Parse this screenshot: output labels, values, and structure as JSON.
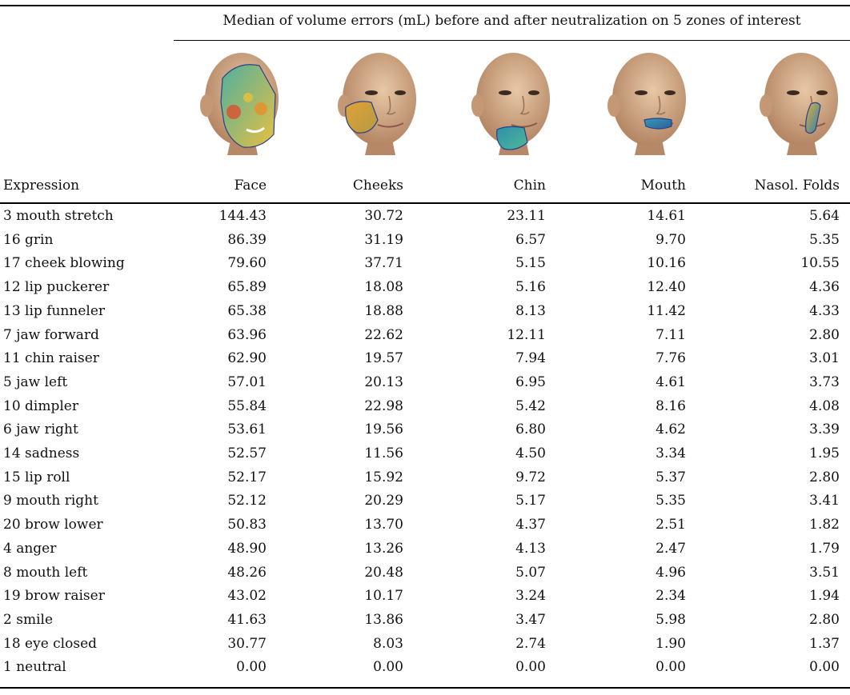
{
  "caption": "Median of volume errors (mL) before and after neutralization on 5 zones of interest",
  "columns": [
    "Expression",
    "Face",
    "Cheeks",
    "Chin",
    "Mouth",
    "Nasol. Folds"
  ],
  "rows": [
    {
      "expression": "3 mouth stretch",
      "values": [
        "144.43",
        "30.72",
        "23.11",
        "14.61",
        "5.64"
      ]
    },
    {
      "expression": "16 grin",
      "values": [
        "86.39",
        "31.19",
        "6.57",
        "9.70",
        "5.35"
      ]
    },
    {
      "expression": "17 cheek blowing",
      "values": [
        "79.60",
        "37.71",
        "5.15",
        "10.16",
        "10.55"
      ]
    },
    {
      "expression": "12 lip puckerer",
      "values": [
        "65.89",
        "18.08",
        "5.16",
        "12.40",
        "4.36"
      ]
    },
    {
      "expression": "13 lip funneler",
      "values": [
        "65.38",
        "18.88",
        "8.13",
        "11.42",
        "4.33"
      ]
    },
    {
      "expression": "7 jaw forward",
      "values": [
        "63.96",
        "22.62",
        "12.11",
        "7.11",
        "2.80"
      ]
    },
    {
      "expression": "11 chin raiser",
      "values": [
        "62.90",
        "19.57",
        "7.94",
        "7.76",
        "3.01"
      ]
    },
    {
      "expression": "5 jaw left",
      "values": [
        "57.01",
        "20.13",
        "6.95",
        "4.61",
        "3.73"
      ]
    },
    {
      "expression": "10 dimpler",
      "values": [
        "55.84",
        "22.98",
        "5.42",
        "8.16",
        "4.08"
      ]
    },
    {
      "expression": "6 jaw right",
      "values": [
        "53.61",
        "19.56",
        "6.80",
        "4.62",
        "3.39"
      ]
    },
    {
      "expression": "14 sadness",
      "values": [
        "52.57",
        "11.56",
        "4.50",
        "3.34",
        "1.95"
      ]
    },
    {
      "expression": "15 lip roll",
      "values": [
        "52.17",
        "15.92",
        "9.72",
        "5.37",
        "2.80"
      ]
    },
    {
      "expression": "9 mouth right",
      "values": [
        "52.12",
        "20.29",
        "5.17",
        "5.35",
        "3.41"
      ]
    },
    {
      "expression": "20 brow lower",
      "values": [
        "50.83",
        "13.70",
        "4.37",
        "2.51",
        "1.82"
      ]
    },
    {
      "expression": "4 anger",
      "values": [
        "48.90",
        "13.26",
        "4.13",
        "2.47",
        "1.79"
      ]
    },
    {
      "expression": "8 mouth left",
      "values": [
        "48.26",
        "20.48",
        "5.07",
        "4.96",
        "3.51"
      ]
    },
    {
      "expression": "19 brow raiser",
      "values": [
        "43.02",
        "10.17",
        "3.24",
        "2.34",
        "1.94"
      ]
    },
    {
      "expression": "2 smile",
      "values": [
        "41.63",
        "13.86",
        "3.47",
        "5.98",
        "2.80"
      ]
    },
    {
      "expression": "18 eye closed",
      "values": [
        "30.77",
        "8.03",
        "2.74",
        "1.90",
        "1.37"
      ]
    },
    {
      "expression": "1 neutral",
      "values": [
        "0.00",
        "0.00",
        "0.00",
        "0.00",
        "0.00"
      ]
    }
  ],
  "zone_images": [
    {
      "zone": "face-zone",
      "color": "#4fb0a0"
    },
    {
      "zone": "cheeks-zone",
      "color": "#c9a040"
    },
    {
      "zone": "chin-zone",
      "color": "#3aa0a8"
    },
    {
      "zone": "mouth-zone",
      "color": "#3a9ab0"
    },
    {
      "zone": "nasolabial-zone",
      "color": "#3a90b0"
    }
  ]
}
